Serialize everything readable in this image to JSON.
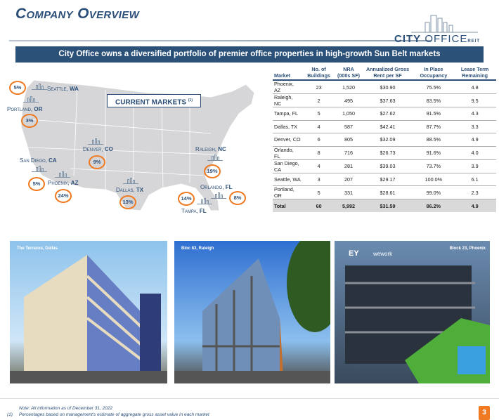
{
  "header": {
    "title": "Company Overview",
    "logo": {
      "bold": "CITY",
      "rest": " OFFICE",
      "suffix": "REIT"
    },
    "banner": "City Office owns a diversified portfolio of premier office properties in high-growth Sun Belt markets"
  },
  "map": {
    "box_label": "CURRENT MARKETS",
    "box_note": "(1)",
    "markets": [
      {
        "city": "Seattle, ",
        "state": "WA",
        "pct": "5%"
      },
      {
        "city": "Portland, ",
        "state": "OR",
        "pct": "3%"
      },
      {
        "city": "Denver, ",
        "state": "CO",
        "pct": "9%"
      },
      {
        "city": "San Diego, ",
        "state": "CA",
        "pct": "5%"
      },
      {
        "city": "Phoenix, ",
        "state": "AZ",
        "pct": "24%"
      },
      {
        "city": "Dallas, ",
        "state": "TX",
        "pct": "13%"
      },
      {
        "city": "Raleigh, ",
        "state": "NC",
        "pct": "19%"
      },
      {
        "city": "Orlando, ",
        "state": "FL",
        "pct": "8%"
      },
      {
        "city": "Tampa, ",
        "state": "FL",
        "pct": "14%"
      }
    ]
  },
  "table": {
    "headers": [
      "Market",
      "No. of Buildings",
      "NRA (000s SF)",
      "Annualized Gross Rent per SF",
      "In Place Occupancy",
      "Lease Term Remaining"
    ],
    "rows": [
      [
        "Phoenix, AZ",
        "23",
        "1,520",
        "$30.90",
        "75.5%",
        "4.8"
      ],
      [
        "Raleigh, NC",
        "2",
        "495",
        "$37.63",
        "83.5%",
        "9.5"
      ],
      [
        "Tampa, FL",
        "5",
        "1,050",
        "$27.62",
        "91.5%",
        "4.3"
      ],
      [
        "Dallas, TX",
        "4",
        "587",
        "$42.41",
        "87.7%",
        "3.3"
      ],
      [
        "Denver, CO",
        "6",
        "805",
        "$32.09",
        "88.5%",
        "4.9"
      ],
      [
        "Orlando, FL",
        "8",
        "716",
        "$26.73",
        "91.6%",
        "4.0"
      ],
      [
        "San Diego, CA",
        "4",
        "281",
        "$39.03",
        "73.7%",
        "3.9"
      ],
      [
        "Seattle, WA",
        "3",
        "207",
        "$29.17",
        "100.0%",
        "6.1"
      ],
      [
        "Portland, OR",
        "5",
        "331",
        "$28.61",
        "99.0%",
        "2.3"
      ]
    ],
    "total": [
      "Total",
      "60",
      "5,992",
      "$31.59",
      "86.2%",
      "4.9"
    ]
  },
  "photos": [
    {
      "caption": "The Terraces, Dallas"
    },
    {
      "caption": "Bloc 83, Raleigh"
    },
    {
      "caption": "Block 23, Phoenix",
      "signs": [
        "EY",
        "wework"
      ]
    }
  ],
  "footer": {
    "note": "Note: All information as of December 31, 2022",
    "fn_marker": "(1)",
    "fn_text": "Percentages based on management's estimate of aggregate gross asset value in each market",
    "page": "3"
  }
}
